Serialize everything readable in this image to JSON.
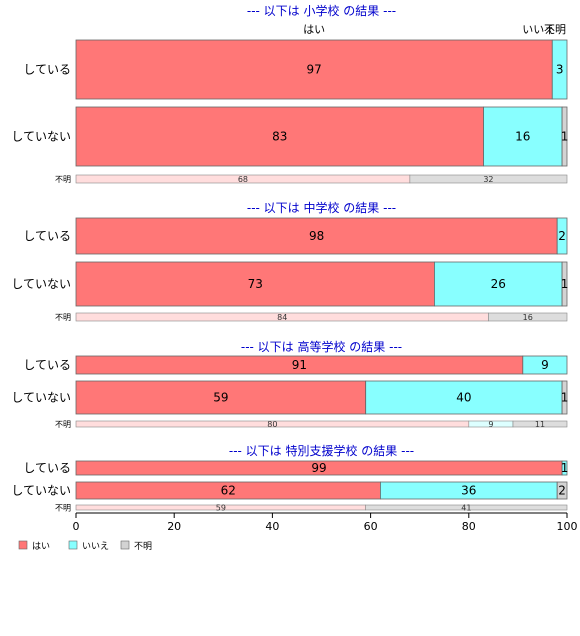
{
  "chart_data": {
    "type": "bar",
    "orientation": "horizontal",
    "stacked": true,
    "xlim": [
      0,
      100
    ],
    "xticks": [
      "0",
      "20",
      "40",
      "60",
      "80",
      "100"
    ],
    "legend": {
      "placement": "bottom-left",
      "items": [
        {
          "label": "はい",
          "color": "#ff7777"
        },
        {
          "label": "いいえ",
          "color": "#88ffff"
        },
        {
          "label": "不明",
          "color": "#d3d3d3"
        }
      ]
    },
    "column_headers": [
      "はい",
      "いいえ",
      "不明"
    ],
    "panels": [
      {
        "title": "--- 以下は 小学校 の結果 ---",
        "rows": [
          {
            "label": "している",
            "values": [
              97,
              3,
              0
            ],
            "labels": [
              "97",
              "3",
              ""
            ]
          },
          {
            "label": "していない",
            "values": [
              83,
              16,
              1
            ],
            "labels": [
              "83",
              "16",
              "1"
            ]
          }
        ],
        "unknown": {
          "label": "不明",
          "values": [
            68,
            0,
            32
          ],
          "labels": [
            "68",
            "",
            "32"
          ]
        }
      },
      {
        "title": "--- 以下は 中学校 の結果 ---",
        "rows": [
          {
            "label": "している",
            "values": [
              98,
              2,
              0
            ],
            "labels": [
              "98",
              "2",
              ""
            ]
          },
          {
            "label": "していない",
            "values": [
              73,
              26,
              1
            ],
            "labels": [
              "73",
              "26",
              "1"
            ]
          }
        ],
        "unknown": {
          "label": "不明",
          "values": [
            84,
            0,
            16
          ],
          "labels": [
            "84",
            "",
            "16"
          ]
        }
      },
      {
        "title": "--- 以下は 高等学校 の結果 ---",
        "rows": [
          {
            "label": "している",
            "values": [
              91,
              9,
              0
            ],
            "labels": [
              "91",
              "9",
              ""
            ]
          },
          {
            "label": "していない",
            "values": [
              59,
              40,
              1
            ],
            "labels": [
              "59",
              "40",
              "1"
            ]
          }
        ],
        "unknown": {
          "label": "不明",
          "values": [
            80,
            9,
            11
          ],
          "labels": [
            "80",
            "9",
            "11"
          ]
        }
      },
      {
        "title": "--- 以下は 特別支援学校 の結果 ---",
        "rows": [
          {
            "label": "している",
            "values": [
              99,
              1,
              0
            ],
            "labels": [
              "99",
              "1",
              ""
            ]
          },
          {
            "label": "していない",
            "values": [
              62,
              36,
              2
            ],
            "labels": [
              "62",
              "36",
              "2"
            ]
          }
        ],
        "unknown": {
          "label": "不明",
          "values": [
            59,
            0,
            41
          ],
          "labels": [
            "59",
            "",
            "41"
          ]
        }
      }
    ]
  }
}
